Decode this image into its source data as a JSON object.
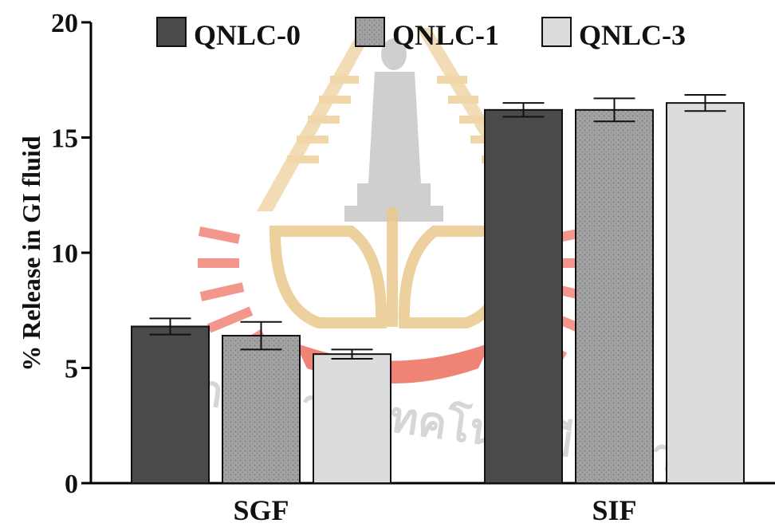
{
  "chart_data": {
    "type": "bar",
    "title": "",
    "xlabel": "",
    "ylabel": "% Release in GI fluid",
    "categories": [
      "SGF",
      "SIF"
    ],
    "series": [
      {
        "name": "QNLC-0",
        "values": [
          6.8,
          16.2
        ],
        "errors": [
          0.35,
          0.3
        ],
        "color": "#4a4a4a",
        "pattern": "solid-dark"
      },
      {
        "name": "QNLC-1",
        "values": [
          6.4,
          16.2
        ],
        "errors": [
          0.6,
          0.5
        ],
        "color": "#9a9a9a",
        "pattern": "dotted-grey"
      },
      {
        "name": "QNLC-3",
        "values": [
          5.6,
          16.5
        ],
        "errors": [
          0.2,
          0.35
        ],
        "color": "#d7d7d7",
        "pattern": "solid-light"
      }
    ],
    "ylim": [
      0,
      20
    ],
    "yticks": [
      0,
      5,
      10,
      15,
      20
    ],
    "grid": false,
    "legend": "top"
  },
  "watermark": {
    "text": "มหาวิทยาลัยเทคโนโลยีสุรนารี",
    "colors": {
      "gold": "#e8c88a",
      "red": "#e0403a",
      "grey": "#b8b8b8"
    }
  }
}
